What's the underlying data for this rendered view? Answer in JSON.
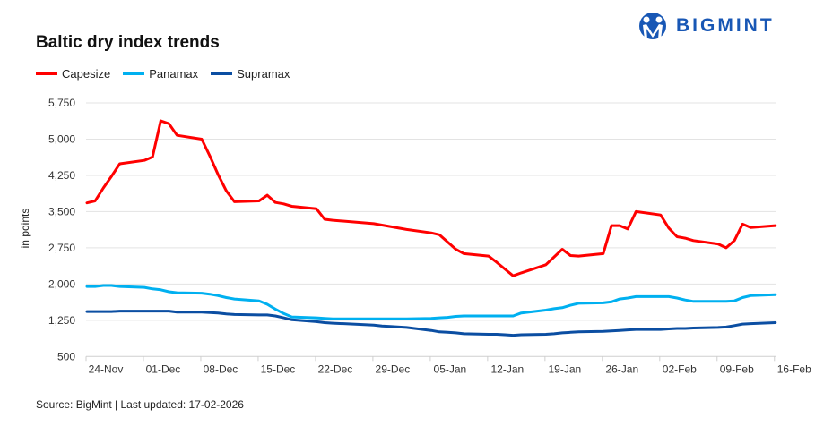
{
  "brand": {
    "logo_text": "BIGMINT",
    "color": "#1857b5"
  },
  "chart_data": {
    "type": "line",
    "title": "Baltic dry index trends",
    "ylabel": "in points",
    "xlabel": "",
    "ylim": [
      500,
      5750
    ],
    "yticks": [
      "500",
      "1,250",
      "2,000",
      "2,750",
      "3,500",
      "4,250",
      "5,000",
      "5,750"
    ],
    "ytick_values": [
      500,
      1250,
      2000,
      2750,
      3500,
      4250,
      5000,
      5750
    ],
    "xlim": [
      "2025-11-24",
      "2026-02-16"
    ],
    "xticks": [
      "24-Nov",
      "01-Dec",
      "08-Dec",
      "15-Dec",
      "22-Dec",
      "29-Dec",
      "05-Jan",
      "12-Jan",
      "19-Jan",
      "26-Jan",
      "02-Feb",
      "09-Feb",
      "16-Feb"
    ],
    "grid": true,
    "legend": "top-left",
    "x": [
      "2025-11-24",
      "2025-11-25",
      "2025-11-26",
      "2025-11-27",
      "2025-11-28",
      "2025-12-01",
      "2025-12-02",
      "2025-12-03",
      "2025-12-04",
      "2025-12-05",
      "2025-12-08",
      "2025-12-09",
      "2025-12-10",
      "2025-12-11",
      "2025-12-12",
      "2025-12-15",
      "2025-12-16",
      "2025-12-17",
      "2025-12-18",
      "2025-12-19",
      "2025-12-22",
      "2025-12-23",
      "2025-12-24",
      "2025-12-29",
      "2025-12-30",
      "2025-12-31",
      "2026-01-02",
      "2026-01-05",
      "2026-01-06",
      "2026-01-07",
      "2026-01-08",
      "2026-01-09",
      "2026-01-12",
      "2026-01-13",
      "2026-01-14",
      "2026-01-15",
      "2026-01-16",
      "2026-01-19",
      "2026-01-20",
      "2026-01-21",
      "2026-01-22",
      "2026-01-23",
      "2026-01-26",
      "2026-01-27",
      "2026-01-28",
      "2026-01-29",
      "2026-01-30",
      "2026-02-02",
      "2026-02-03",
      "2026-02-04",
      "2026-02-05",
      "2026-02-06",
      "2026-02-09",
      "2026-02-10",
      "2026-02-11",
      "2026-02-12",
      "2026-02-13",
      "2026-02-16"
    ],
    "series": [
      {
        "name": "Capesize",
        "color": "#ff0000",
        "values": [
          3680,
          3720,
          3990,
          4230,
          4490,
          4560,
          4630,
          5380,
          5320,
          5080,
          5000,
          4650,
          4270,
          3930,
          3705,
          3720,
          3840,
          3690,
          3660,
          3610,
          3560,
          3340,
          3320,
          3250,
          3220,
          3190,
          3130,
          3060,
          3020,
          2870,
          2720,
          2630,
          2580,
          2450,
          2310,
          2170,
          2230,
          2400,
          2560,
          2720,
          2590,
          2580,
          2630,
          3210,
          3210,
          3140,
          3500,
          3430,
          3160,
          2980,
          2950,
          2900,
          2830,
          2750,
          2900,
          3240,
          3170,
          3210
        ]
      },
      {
        "name": "Panamax",
        "color": "#00b0f0",
        "values": [
          1950,
          1950,
          1970,
          1970,
          1950,
          1930,
          1900,
          1880,
          1840,
          1820,
          1810,
          1790,
          1760,
          1720,
          1690,
          1650,
          1580,
          1480,
          1390,
          1320,
          1300,
          1290,
          1280,
          1280,
          1280,
          1280,
          1280,
          1290,
          1300,
          1310,
          1330,
          1340,
          1340,
          1340,
          1340,
          1340,
          1400,
          1460,
          1490,
          1510,
          1560,
          1600,
          1610,
          1630,
          1690,
          1710,
          1740,
          1740,
          1740,
          1710,
          1670,
          1640,
          1640,
          1640,
          1650,
          1720,
          1760,
          1780
        ]
      },
      {
        "name": "Supramax",
        "color": "#0b4ea2",
        "values": [
          1430,
          1430,
          1430,
          1430,
          1440,
          1440,
          1440,
          1440,
          1440,
          1420,
          1420,
          1410,
          1400,
          1380,
          1370,
          1360,
          1360,
          1340,
          1300,
          1260,
          1220,
          1200,
          1190,
          1150,
          1130,
          1120,
          1100,
          1040,
          1010,
          1000,
          990,
          970,
          960,
          960,
          950,
          940,
          950,
          960,
          970,
          990,
          1000,
          1010,
          1020,
          1030,
          1040,
          1050,
          1060,
          1060,
          1070,
          1080,
          1080,
          1090,
          1100,
          1110,
          1140,
          1170,
          1180,
          1200
        ]
      }
    ]
  },
  "footer": {
    "source": "Source: BigMint | Last updated: 17-02-2026"
  }
}
